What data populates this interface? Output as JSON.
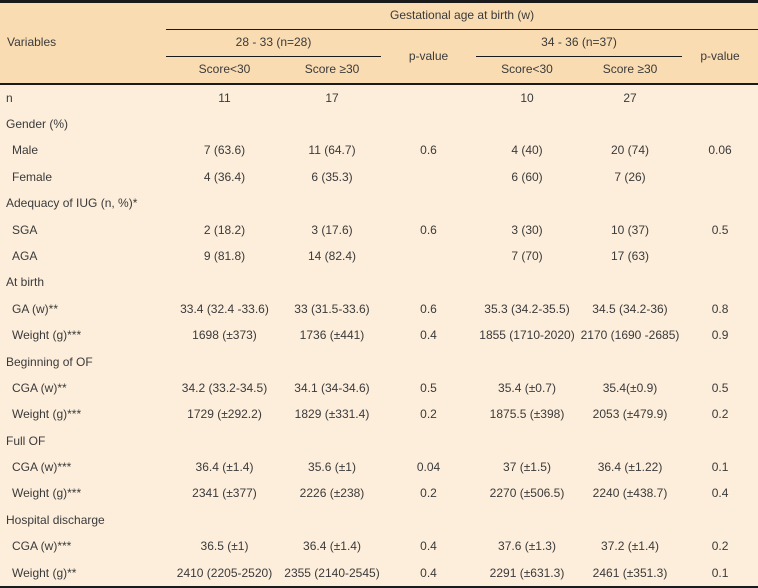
{
  "colors": {
    "header_background": "#FADCB3",
    "body_background": "#FDEEDC",
    "rule_line": "#1A1A1A",
    "text": "#3A3A3A"
  },
  "table": {
    "variables_label": "Variables",
    "group_header": "Gestational age at birth (w)",
    "groups": [
      {
        "label": "28 - 33 (n=28)",
        "sub": [
          "Score<30",
          "Score ≥30"
        ],
        "pvalue_label": "p-value"
      },
      {
        "label": "34 - 36 (n=37)",
        "sub": [
          "Score<30",
          "Score ≥30"
        ],
        "pvalue_label": "p-value"
      }
    ],
    "rows": [
      {
        "label": "n",
        "indent": false,
        "cells": [
          "11",
          "17",
          "",
          "10",
          "27",
          ""
        ]
      },
      {
        "label": "Gender (%)",
        "indent": false,
        "cells": [
          "",
          "",
          "",
          "",
          "",
          ""
        ]
      },
      {
        "label": "Male",
        "indent": true,
        "cells": [
          "7 (63.6)",
          "11 (64.7)",
          "0.6",
          "4 (40)",
          "20 (74)",
          "0.06"
        ]
      },
      {
        "label": "Female",
        "indent": true,
        "cells": [
          "4 (36.4)",
          "6 (35.3)",
          "",
          "6 (60)",
          "7 (26)",
          ""
        ]
      },
      {
        "label": "Adequacy of IUG (n, %)*",
        "indent": false,
        "cells": [
          "",
          "",
          "",
          "",
          "",
          ""
        ]
      },
      {
        "label": "SGA",
        "indent": true,
        "cells": [
          "2 (18.2)",
          "3 (17.6)",
          "0.6",
          "3 (30)",
          "10 (37)",
          "0.5"
        ]
      },
      {
        "label": "AGA",
        "indent": true,
        "cells": [
          "9 (81.8)",
          "14 (82.4)",
          "",
          "7 (70)",
          "17 (63)",
          ""
        ]
      },
      {
        "label": "At birth",
        "indent": false,
        "cells": [
          "",
          "",
          "",
          "",
          "",
          ""
        ]
      },
      {
        "label": "GA (w)**",
        "indent": true,
        "cells": [
          "33.4 (32.4 -33.6)",
          "33 (31.5-33.6)",
          "0.6",
          "35.3 (34.2-35.5)",
          "34.5 (34.2-36)",
          "0.8"
        ]
      },
      {
        "label": "Weight (g)***",
        "indent": true,
        "cells": [
          "1698 (±373)",
          "1736 (±441)",
          "0.4",
          "1855 (1710-2020)",
          "2170 (1690 -2685)",
          "0.9"
        ]
      },
      {
        "label": "Beginning of OF",
        "indent": false,
        "cells": [
          "",
          "",
          "",
          "",
          "",
          ""
        ]
      },
      {
        "label": "CGA (w)**",
        "indent": true,
        "cells": [
          "34.2 (33.2-34.5)",
          "34.1 (34-34.6)",
          "0.5",
          "35.4 (±0.7)",
          "35.4(±0.9)",
          "0.5"
        ]
      },
      {
        "label": "Weight (g)***",
        "indent": true,
        "cells": [
          "1729 (±292.2)",
          "1829 (±331.4)",
          "0.2",
          "1875.5 (±398)",
          "2053 (±479.9)",
          "0.2"
        ]
      },
      {
        "label": "Full OF",
        "indent": false,
        "cells": [
          "",
          "",
          "",
          "",
          "",
          ""
        ]
      },
      {
        "label": "CGA (w)***",
        "indent": true,
        "cells": [
          "36.4 (±1.4)",
          "35.6 (±1)",
          "0.04",
          "37 (±1.5)",
          "36.4 (±1.22)",
          "0.1"
        ]
      },
      {
        "label": "Weight (g)***",
        "indent": true,
        "cells": [
          "2341 (±377)",
          "2226 (±238)",
          "0.2",
          "2270 (±506.5)",
          "2240 (±438.7)",
          "0.4"
        ]
      },
      {
        "label": "Hospital discharge",
        "indent": false,
        "cells": [
          "",
          "",
          "",
          "",
          "",
          ""
        ]
      },
      {
        "label": "CGA (w)***",
        "indent": true,
        "cells": [
          "36.5 (±1)",
          "36.4 (±1.4)",
          "0.4",
          "37.6 (±1.3)",
          "37.2 (±1.4)",
          "0.2"
        ]
      },
      {
        "label": "Weight (g)**",
        "indent": true,
        "cells": [
          "2410 (2205-2520)",
          "2355 (2140-2545)",
          "0.4",
          "2291 (±631.3)",
          "2461 (±351.3)",
          "0.1"
        ]
      }
    ]
  }
}
